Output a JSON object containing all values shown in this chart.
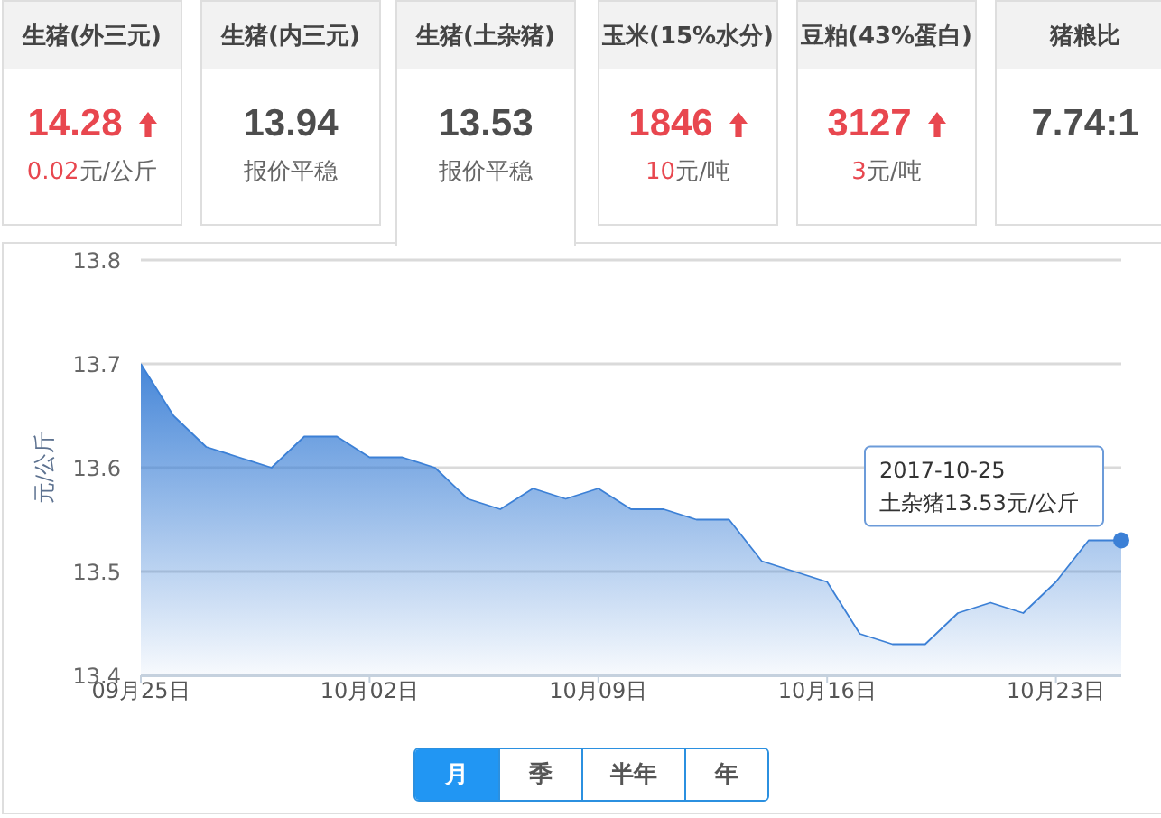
{
  "chart_data": [
    {
      "type": "other",
      "title": "生猪(外三元)",
      "annotations": [
        "14.28",
        "0.02元/公斤"
      ],
      "color": "#e8474f"
    },
    {
      "type": "other",
      "title": "生猪(内三元)",
      "annotations": [
        "13.94",
        "报价平稳"
      ]
    },
    {
      "type": "other",
      "title": "生猪(土杂猪)",
      "annotations": [
        "13.53",
        "报价平稳"
      ]
    },
    {
      "type": "other",
      "title": "玉米(15%水分)",
      "annotations": [
        "1846",
        "10元/吨"
      ],
      "color": "#e8474f"
    },
    {
      "type": "other",
      "title": "豆粕(43%蛋白)",
      "annotations": [
        "3127",
        "3元/吨"
      ],
      "color": "#e8474f"
    },
    {
      "type": "other",
      "title": "猪粮比",
      "annotations": [
        "7.74:1"
      ]
    },
    {
      "type": "area",
      "ylabel": "元/公斤",
      "x": [
        "2017-09-25",
        "2017-09-26",
        "2017-09-27",
        "2017-09-28",
        "2017-09-29",
        "2017-09-30",
        "2017-10-01",
        "2017-10-02",
        "2017-10-03",
        "2017-10-04",
        "2017-10-05",
        "2017-10-06",
        "2017-10-07",
        "2017-10-08",
        "2017-10-09",
        "2017-10-10",
        "2017-10-11",
        "2017-10-12",
        "2017-10-13",
        "2017-10-14",
        "2017-10-15",
        "2017-10-16",
        "2017-10-17",
        "2017-10-18",
        "2017-10-19",
        "2017-10-20",
        "2017-10-21",
        "2017-10-22",
        "2017-10-23",
        "2017-10-24",
        "2017-10-25"
      ],
      "values": [
        13.7,
        13.65,
        13.62,
        13.61,
        13.6,
        13.63,
        13.63,
        13.61,
        13.61,
        13.6,
        13.57,
        13.56,
        13.58,
        13.57,
        13.58,
        13.56,
        13.56,
        13.55,
        13.55,
        13.51,
        13.5,
        13.49,
        13.44,
        13.43,
        13.43,
        13.46,
        13.47,
        13.46,
        13.49,
        13.53,
        13.53
      ],
      "color": "#3c80d6",
      "xlim": [
        "2017-09-25",
        "2017-10-25"
      ],
      "ylim": [
        13.4,
        13.8
      ],
      "xticks": [
        {
          "value": "2017-09-25",
          "label": "09月25日"
        },
        {
          "value": "2017-10-02",
          "label": "10月02日"
        },
        {
          "value": "2017-10-09",
          "label": "10月09日"
        },
        {
          "value": "2017-10-16",
          "label": "10月16日"
        },
        {
          "value": "2017-10-23",
          "label": "10月23日"
        }
      ],
      "yticks": [
        13.4,
        13.5,
        13.6,
        13.7,
        13.8
      ],
      "grid": "y",
      "annotations": [
        {
          "text": "2017-10-25\n土杂猪13.53元/公斤",
          "x": "2017-10-25",
          "y": 13.53
        }
      ]
    },
    {
      "type": "other",
      "annotations": [
        "月",
        "季",
        "半年",
        "年"
      ]
    }
  ]
}
